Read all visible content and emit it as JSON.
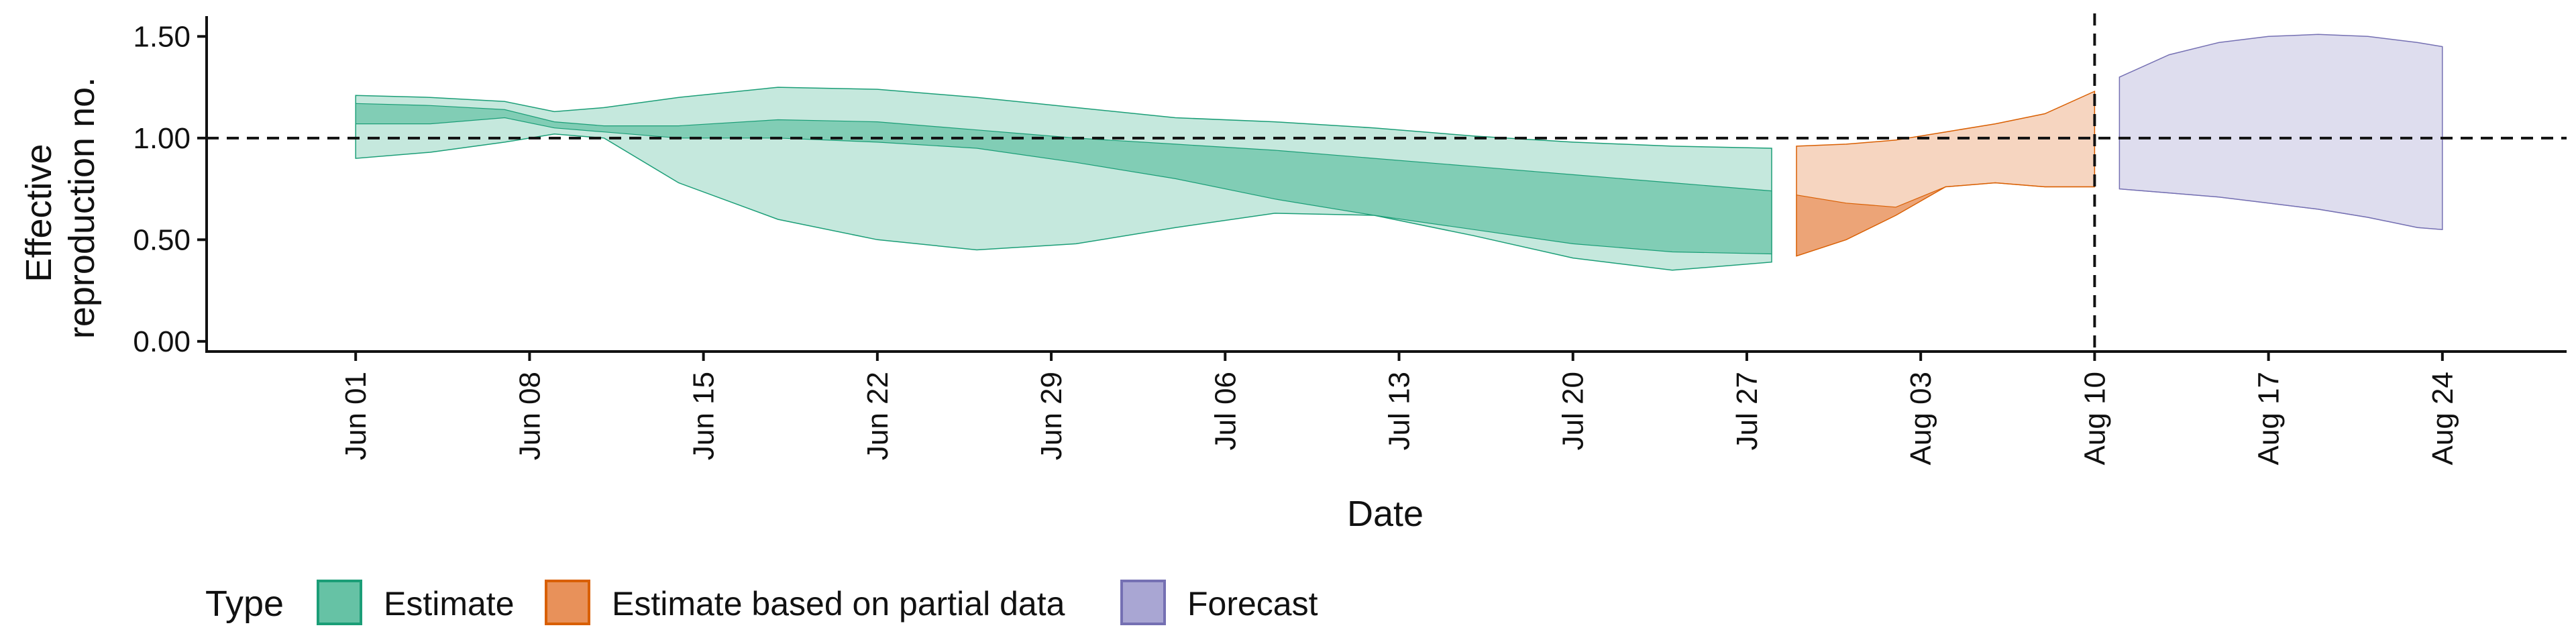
{
  "chart_data": {
    "type": "area",
    "xlabel": "Date",
    "ylabel": [
      "Effective",
      "reproduction no."
    ],
    "ylim": [
      -0.05,
      1.6
    ],
    "xlim": [
      "2020-05-26",
      "2020-08-29"
    ],
    "yticks": [
      0.0,
      0.5,
      1.0,
      1.5
    ],
    "ytick_labels": [
      "0.00",
      "0.50",
      "1.00",
      "1.50"
    ],
    "xticks": [
      "2020-06-01",
      "2020-06-08",
      "2020-06-15",
      "2020-06-22",
      "2020-06-29",
      "2020-07-06",
      "2020-07-13",
      "2020-07-20",
      "2020-07-27",
      "2020-08-03",
      "2020-08-10",
      "2020-08-17",
      "2020-08-24"
    ],
    "xtick_labels": [
      "Jun 01",
      "Jun 08",
      "Jun 15",
      "Jun 22",
      "Jun 29",
      "Jul 06",
      "Jul 13",
      "Jul 20",
      "Jul 27",
      "Aug 03",
      "Aug 10",
      "Aug 17",
      "Aug 24"
    ],
    "reference_hline": 1.0,
    "reference_vline": "2020-08-10",
    "grid": false,
    "legend": {
      "title": "Type",
      "position": "bottom-left",
      "entries": [
        {
          "label": "Estimate",
          "fill": "#66c2a5",
          "stroke": "#1b9e77"
        },
        {
          "label": "Estimate based on partial data",
          "fill": "#e8915a",
          "stroke": "#d95f02"
        },
        {
          "label": "Forecast",
          "fill": "#a9a6d3",
          "stroke": "#7570b3"
        }
      ]
    },
    "series": [
      {
        "type_index": 0,
        "x": [
          "2020-06-01",
          "2020-06-04",
          "2020-06-07",
          "2020-06-09",
          "2020-06-11",
          "2020-06-14",
          "2020-06-18",
          "2020-06-22",
          "2020-06-26",
          "2020-06-30",
          "2020-07-04",
          "2020-07-08",
          "2020-07-12",
          "2020-07-16",
          "2020-07-20",
          "2020-07-24",
          "2020-07-28"
        ],
        "outer_lower": [
          0.9,
          0.93,
          0.98,
          1.02,
          1.0,
          0.78,
          0.6,
          0.5,
          0.45,
          0.48,
          0.56,
          0.63,
          0.62,
          0.52,
          0.41,
          0.35,
          0.39
        ],
        "outer_upper": [
          1.21,
          1.2,
          1.18,
          1.13,
          1.15,
          1.2,
          1.25,
          1.24,
          1.2,
          1.15,
          1.1,
          1.08,
          1.05,
          1.01,
          0.98,
          0.96,
          0.95
        ],
        "inner_lower": [
          1.07,
          1.07,
          1.1,
          1.05,
          1.03,
          1.0,
          1.0,
          0.98,
          0.95,
          0.88,
          0.8,
          0.7,
          0.62,
          0.55,
          0.48,
          0.44,
          0.43
        ],
        "inner_upper": [
          1.17,
          1.16,
          1.14,
          1.08,
          1.06,
          1.06,
          1.09,
          1.08,
          1.04,
          1.0,
          0.97,
          0.94,
          0.9,
          0.86,
          0.82,
          0.78,
          0.74
        ]
      },
      {
        "type_index": 1,
        "x": [
          "2020-07-29",
          "2020-07-31",
          "2020-08-02",
          "2020-08-04",
          "2020-08-06",
          "2020-08-08",
          "2020-08-10"
        ],
        "outer_lower": [
          0.42,
          0.5,
          0.62,
          0.76,
          0.78,
          0.76,
          0.76
        ],
        "outer_upper": [
          0.96,
          0.97,
          0.99,
          1.03,
          1.07,
          1.12,
          1.23
        ],
        "inner_lower": [
          0.42,
          0.5,
          0.62,
          0.76,
          0.78,
          0.76,
          0.76
        ],
        "inner_upper": [
          0.72,
          0.68,
          0.66,
          0.76,
          0.78,
          0.76,
          0.76
        ]
      },
      {
        "type_index": 2,
        "x": [
          "2020-08-11",
          "2020-08-13",
          "2020-08-15",
          "2020-08-17",
          "2020-08-19",
          "2020-08-21",
          "2020-08-23",
          "2020-08-24"
        ],
        "outer_lower": [
          0.75,
          0.73,
          0.71,
          0.68,
          0.65,
          0.61,
          0.56,
          0.55
        ],
        "outer_upper": [
          1.3,
          1.41,
          1.47,
          1.5,
          1.51,
          1.5,
          1.47,
          1.45
        ],
        "inner_lower": [
          0.75,
          0.73,
          0.71,
          0.68,
          0.65,
          0.61,
          0.56,
          0.55
        ],
        "inner_upper": [
          0.75,
          0.73,
          0.71,
          0.68,
          0.65,
          0.61,
          0.56,
          0.55
        ]
      }
    ]
  }
}
